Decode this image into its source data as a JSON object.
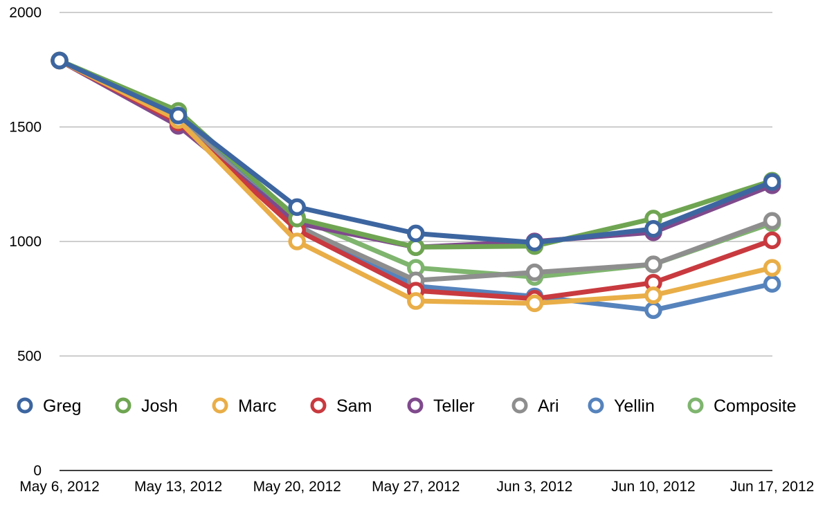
{
  "chart_data": {
    "type": "line",
    "title": "",
    "xlabel": "",
    "ylabel": "",
    "categories": [
      "May 6, 2012",
      "May 13, 2012",
      "May 20, 2012",
      "May 27, 2012",
      "Jun 3, 2012",
      "Jun 10, 2012",
      "Jun 17, 2012"
    ],
    "ylim": [
      0,
      2000
    ],
    "yticks": [
      "0",
      "500",
      "1000",
      "1500",
      "2000"
    ],
    "grid": true,
    "legend_position": "inside-bottom",
    "series": [
      {
        "name": "Greg",
        "color": "#3d66a0",
        "values": [
          1790,
          1550,
          1150,
          1035,
          995,
          1055,
          1260
        ]
      },
      {
        "name": "Josh",
        "color": "#6fa552",
        "values": [
          1790,
          1570,
          1100,
          975,
          980,
          1100,
          1265
        ]
      },
      {
        "name": "Marc",
        "color": "#e9ae48",
        "values": [
          1790,
          1530,
          1000,
          740,
          730,
          765,
          885
        ]
      },
      {
        "name": "Sam",
        "color": "#c83a3f",
        "values": [
          1790,
          1520,
          1050,
          785,
          750,
          820,
          1005
        ]
      },
      {
        "name": "Teller",
        "color": "#7f4a8c",
        "values": [
          1790,
          1505,
          1080,
          975,
          1000,
          1040,
          1245
        ]
      },
      {
        "name": "Ari",
        "color": "#8e8e8e",
        "values": [
          1790,
          1540,
          1065,
          830,
          865,
          900,
          1090
        ]
      },
      {
        "name": "Yellin",
        "color": "#5683bc",
        "values": [
          1790,
          1545,
          1070,
          805,
          760,
          700,
          815
        ]
      },
      {
        "name": "Composite",
        "color": "#7fb56f",
        "values": [
          1790,
          1550,
          1105,
          885,
          845,
          900,
          1080
        ]
      }
    ]
  }
}
